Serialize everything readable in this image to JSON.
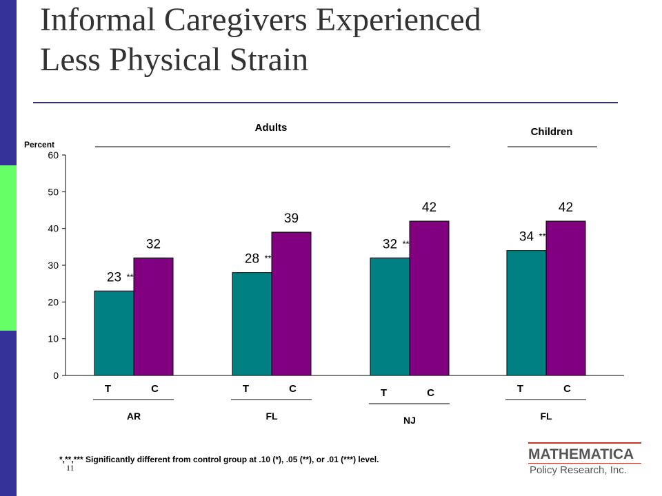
{
  "title_line1": "Informal Caregivers Experienced",
  "title_line2": "Less Physical Strain",
  "footnote": "*,**,*** Significantly different from control group at .10 (*), .05 (**), or .01 (***) level.",
  "slide_number": "11",
  "logo": {
    "main": "MATHEMATICA",
    "sub": "Policy Research, Inc."
  },
  "colors": {
    "treatment": "#008080",
    "control": "#800080",
    "side_bar": "#333399",
    "side_accent": "#66ff66"
  },
  "chart_data": {
    "type": "bar",
    "ylabel": "Percent",
    "ylim": [
      0,
      60
    ],
    "yticks": [
      0,
      10,
      20,
      30,
      40,
      50,
      60
    ],
    "group_headers": [
      {
        "label": "Adults",
        "spans": [
          0,
          1,
          2
        ]
      },
      {
        "label": "Children",
        "spans": [
          3
        ]
      }
    ],
    "categories": [
      "AR",
      "FL",
      "NJ",
      "FL"
    ],
    "bar_labels": [
      "T",
      "C"
    ],
    "series": [
      {
        "name": "T",
        "values": [
          23,
          28,
          32,
          34
        ],
        "significance": [
          "**",
          "**",
          "**",
          "**"
        ]
      },
      {
        "name": "C",
        "values": [
          32,
          39,
          42,
          42
        ],
        "significance": [
          "",
          "",
          "",
          ""
        ]
      }
    ]
  }
}
